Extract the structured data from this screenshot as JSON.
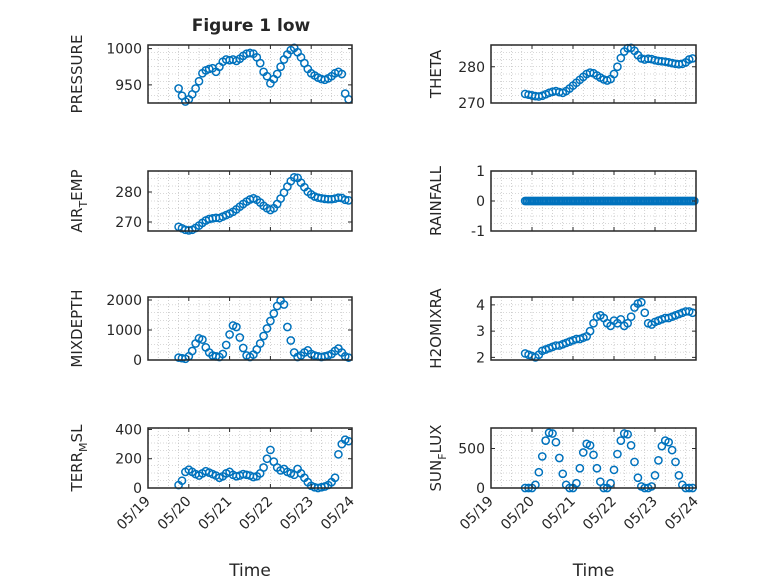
{
  "title": "Figure 1 low",
  "colors": {
    "marker": "#0072bd",
    "axis": "#262626",
    "grid": "#b0b0b0",
    "background": "#ffffff"
  },
  "chart_data": [
    {
      "id": "pressure",
      "type": "scatter",
      "marker": "circle",
      "title": "Figure 1 low",
      "ylabel": "PRESSURE",
      "xlabel": "",
      "xlim": [
        "05/19",
        "05/24"
      ],
      "ylim": [
        925,
        1005
      ],
      "yticks": [
        950,
        1000
      ],
      "yticklabels": [
        "950",
        "1000"
      ],
      "xticks": [
        "05/19",
        "05/20",
        "05/21",
        "05/22",
        "05/23",
        "05/24"
      ],
      "xticklabels": [],
      "grid": "minor-dotted",
      "x": [
        "05/19 18:00",
        "05/19 20:00",
        "05/19 22:00",
        "05/20 00:00",
        "05/20 02:00",
        "05/20 04:00",
        "05/20 06:00",
        "05/20 08:00",
        "05/20 10:00",
        "05/20 12:00",
        "05/20 14:00",
        "05/20 16:00",
        "05/20 18:00",
        "05/20 20:00",
        "05/20 22:00",
        "05/21 00:00",
        "05/21 02:00",
        "05/21 04:00",
        "05/21 06:00",
        "05/21 08:00",
        "05/21 10:00",
        "05/21 12:00",
        "05/21 14:00",
        "05/21 16:00",
        "05/21 18:00",
        "05/21 20:00",
        "05/21 22:00",
        "05/22 00:00",
        "05/22 02:00",
        "05/22 04:00",
        "05/22 06:00",
        "05/22 08:00",
        "05/22 10:00",
        "05/22 12:00",
        "05/22 14:00",
        "05/22 16:00",
        "05/22 18:00",
        "05/22 20:00",
        "05/22 22:00",
        "05/23 00:00",
        "05/23 02:00",
        "05/23 04:00",
        "05/23 06:00",
        "05/23 08:00",
        "05/23 10:00",
        "05/23 12:00",
        "05/23 14:00",
        "05/23 16:00",
        "05/23 18:00",
        "05/23 20:00",
        "05/23 22:00"
      ],
      "y": [
        945,
        935,
        927,
        930,
        937,
        945,
        955,
        966,
        970,
        972,
        973,
        968,
        975,
        982,
        985,
        984,
        985,
        983,
        986,
        990,
        993,
        994,
        993,
        988,
        980,
        968,
        962,
        952,
        958,
        965,
        975,
        985,
        992,
        998,
        1001,
        995,
        988,
        980,
        972,
        966,
        963,
        960,
        958,
        957,
        959,
        962,
        966,
        968,
        965,
        938,
        930
      ]
    },
    {
      "id": "theta",
      "type": "scatter",
      "marker": "circle",
      "ylabel": "THETA",
      "xlabel": "",
      "xlim": [
        "05/19",
        "05/24"
      ],
      "ylim": [
        270,
        286
      ],
      "yticks": [
        270,
        280
      ],
      "yticklabels": [
        "270",
        "280"
      ],
      "xticks": [
        "05/19",
        "05/20",
        "05/21",
        "05/22",
        "05/23",
        "05/24"
      ],
      "xticklabels": [],
      "grid": "minor-dotted",
      "x": [
        "05/19 20:00",
        "05/19 22:00",
        "05/20 00:00",
        "05/20 02:00",
        "05/20 04:00",
        "05/20 06:00",
        "05/20 08:00",
        "05/20 10:00",
        "05/20 12:00",
        "05/20 14:00",
        "05/20 16:00",
        "05/20 18:00",
        "05/20 20:00",
        "05/20 22:00",
        "05/21 00:00",
        "05/21 02:00",
        "05/21 04:00",
        "05/21 06:00",
        "05/21 08:00",
        "05/21 10:00",
        "05/21 12:00",
        "05/21 14:00",
        "05/21 16:00",
        "05/21 18:00",
        "05/21 20:00",
        "05/21 22:00",
        "05/22 00:00",
        "05/22 02:00",
        "05/22 04:00",
        "05/22 06:00",
        "05/22 08:00",
        "05/22 10:00",
        "05/22 12:00",
        "05/22 14:00",
        "05/22 16:00",
        "05/22 18:00",
        "05/22 20:00",
        "05/22 22:00",
        "05/23 00:00",
        "05/23 02:00",
        "05/23 04:00",
        "05/23 06:00",
        "05/23 08:00",
        "05/23 10:00",
        "05/23 12:00",
        "05/23 14:00",
        "05/23 16:00",
        "05/23 18:00",
        "05/23 20:00",
        "05/23 22:00"
      ],
      "y": [
        272.5,
        272.3,
        272.1,
        271.9,
        271.8,
        272.0,
        272.4,
        272.8,
        273.1,
        273.3,
        273.0,
        272.8,
        273.3,
        274.0,
        274.8,
        275.6,
        276.4,
        277.2,
        278.0,
        278.4,
        278.2,
        277.6,
        277.0,
        276.5,
        276.2,
        276.6,
        278.0,
        280.0,
        282.4,
        284.2,
        285.1,
        285.2,
        284.4,
        283.2,
        282.3,
        282.0,
        282.2,
        282.1,
        281.8,
        281.6,
        281.5,
        281.4,
        281.2,
        281.0,
        280.8,
        280.7,
        280.8,
        281.2,
        282.0,
        282.3
      ]
    },
    {
      "id": "air_temp",
      "type": "scatter",
      "marker": "circle",
      "ylabel": "AIR_TEMP",
      "ylabel_main": "AIR",
      "ylabel_sub": "T",
      "ylabel_rest": "EMP",
      "xlabel": "",
      "xlim": [
        "05/19",
        "05/24"
      ],
      "ylim": [
        267,
        287
      ],
      "yticks": [
        270,
        280
      ],
      "yticklabels": [
        "270",
        "280"
      ],
      "xticks": [
        "05/19",
        "05/20",
        "05/21",
        "05/22",
        "05/23",
        "05/24"
      ],
      "xticklabels": [],
      "grid": "minor-dotted",
      "x": [
        "05/19 18:00",
        "05/19 20:00",
        "05/19 22:00",
        "05/20 00:00",
        "05/20 02:00",
        "05/20 04:00",
        "05/20 06:00",
        "05/20 08:00",
        "05/20 10:00",
        "05/20 12:00",
        "05/20 14:00",
        "05/20 16:00",
        "05/20 18:00",
        "05/20 20:00",
        "05/20 22:00",
        "05/21 00:00",
        "05/21 02:00",
        "05/21 04:00",
        "05/21 06:00",
        "05/21 08:00",
        "05/21 10:00",
        "05/21 12:00",
        "05/21 14:00",
        "05/21 16:00",
        "05/21 18:00",
        "05/21 20:00",
        "05/21 22:00",
        "05/22 00:00",
        "05/22 02:00",
        "05/22 04:00",
        "05/22 06:00",
        "05/22 08:00",
        "05/22 10:00",
        "05/22 12:00",
        "05/22 14:00",
        "05/22 16:00",
        "05/22 18:00",
        "05/22 20:00",
        "05/22 22:00",
        "05/23 00:00",
        "05/23 02:00",
        "05/23 04:00",
        "05/23 06:00",
        "05/23 08:00",
        "05/23 10:00",
        "05/23 12:00",
        "05/23 14:00",
        "05/23 16:00",
        "05/23 18:00",
        "05/23 20:00",
        "05/23 22:00"
      ],
      "y": [
        268.4,
        267.9,
        267.4,
        267.2,
        267.4,
        268.0,
        268.8,
        269.7,
        270.5,
        271.0,
        271.2,
        271.4,
        271.3,
        271.8,
        272.3,
        272.8,
        273.4,
        274.2,
        275.1,
        276.0,
        276.8,
        277.5,
        277.9,
        277.4,
        276.5,
        275.4,
        274.6,
        274.0,
        274.6,
        276.0,
        277.8,
        279.8,
        281.8,
        283.6,
        284.9,
        284.7,
        283.1,
        281.6,
        280.1,
        279.2,
        278.5,
        278.1,
        277.9,
        277.7,
        277.6,
        277.6,
        277.8,
        278.1,
        278.0,
        277.4,
        277.2
      ]
    },
    {
      "id": "rainfall",
      "type": "scatter",
      "marker": "circle",
      "ylabel": "RAINFALL",
      "xlabel": "",
      "xlim": [
        "05/19",
        "05/24"
      ],
      "ylim": [
        -1,
        1
      ],
      "yticks": [
        -1,
        0,
        1
      ],
      "yticklabels": [
        "-1",
        "0",
        "1"
      ],
      "xticks": [
        "05/19",
        "05/20",
        "05/21",
        "05/22",
        "05/23",
        "05/24"
      ],
      "xticklabels": [],
      "grid": "minor-dotted",
      "x_range": [
        "05/19 20:00",
        "05/23 23:00"
      ],
      "x_step_hours": 1,
      "y_constant": 0
    },
    {
      "id": "mixdepth",
      "type": "scatter",
      "marker": "circle",
      "ylabel": "MIXDEPTH",
      "xlabel": "",
      "xlim": [
        "05/19",
        "05/24"
      ],
      "ylim": [
        0,
        2100
      ],
      "yticks": [
        0,
        1000,
        2000
      ],
      "yticklabels": [
        "0",
        "1000",
        "2000"
      ],
      "xticks": [
        "05/19",
        "05/20",
        "05/21",
        "05/22",
        "05/23",
        "05/24"
      ],
      "xticklabels": [],
      "grid": "minor-dotted",
      "x": [
        "05/19 18:00",
        "05/19 20:00",
        "05/19 22:00",
        "05/20 00:00",
        "05/20 02:00",
        "05/20 04:00",
        "05/20 06:00",
        "05/20 08:00",
        "05/20 10:00",
        "05/20 12:00",
        "05/20 14:00",
        "05/20 16:00",
        "05/20 18:00",
        "05/20 20:00",
        "05/20 22:00",
        "05/21 00:00",
        "05/21 02:00",
        "05/21 04:00",
        "05/21 06:00",
        "05/21 08:00",
        "05/21 10:00",
        "05/21 12:00",
        "05/21 14:00",
        "05/21 16:00",
        "05/21 18:00",
        "05/21 20:00",
        "05/21 22:00",
        "05/22 00:00",
        "05/22 02:00",
        "05/22 04:00",
        "05/22 06:00",
        "05/22 08:00",
        "05/22 10:00",
        "05/22 12:00",
        "05/22 14:00",
        "05/22 16:00",
        "05/22 18:00",
        "05/22 20:00",
        "05/22 22:00",
        "05/23 00:00",
        "05/23 02:00",
        "05/23 04:00",
        "05/23 06:00",
        "05/23 08:00",
        "05/23 10:00",
        "05/23 12:00",
        "05/23 14:00",
        "05/23 16:00",
        "05/23 18:00",
        "05/23 20:00",
        "05/23 22:00"
      ],
      "y": [
        80,
        60,
        40,
        120,
        300,
        550,
        720,
        680,
        420,
        250,
        150,
        120,
        100,
        200,
        500,
        850,
        1150,
        1100,
        750,
        400,
        150,
        100,
        180,
        350,
        550,
        800,
        1050,
        1300,
        1550,
        1800,
        1980,
        1850,
        1100,
        650,
        250,
        100,
        150,
        250,
        320,
        200,
        150,
        120,
        100,
        120,
        150,
        200,
        300,
        380,
        250,
        120,
        80
      ]
    },
    {
      "id": "h2omixra",
      "type": "scatter",
      "marker": "circle",
      "ylabel": "H2OMIXRA",
      "xlabel": "",
      "xlim": [
        "05/19",
        "05/24"
      ],
      "ylim": [
        1.9,
        4.3
      ],
      "yticks": [
        2,
        3,
        4
      ],
      "yticklabels": [
        "2",
        "3",
        "4"
      ],
      "xticks": [
        "05/19",
        "05/20",
        "05/21",
        "05/22",
        "05/23",
        "05/24"
      ],
      "xticklabels": [],
      "grid": "minor-dotted",
      "x": [
        "05/19 20:00",
        "05/19 22:00",
        "05/20 00:00",
        "05/20 02:00",
        "05/20 04:00",
        "05/20 06:00",
        "05/20 08:00",
        "05/20 10:00",
        "05/20 12:00",
        "05/20 14:00",
        "05/20 16:00",
        "05/20 18:00",
        "05/20 20:00",
        "05/20 22:00",
        "05/21 00:00",
        "05/21 02:00",
        "05/21 04:00",
        "05/21 06:00",
        "05/21 08:00",
        "05/21 10:00",
        "05/21 12:00",
        "05/21 14:00",
        "05/21 16:00",
        "05/21 18:00",
        "05/21 20:00",
        "05/21 22:00",
        "05/22 00:00",
        "05/22 02:00",
        "05/22 04:00",
        "05/22 06:00",
        "05/22 08:00",
        "05/22 10:00",
        "05/22 12:00",
        "05/22 14:00",
        "05/22 16:00",
        "05/22 18:00",
        "05/22 20:00",
        "05/22 22:00",
        "05/23 00:00",
        "05/23 02:00",
        "05/23 04:00",
        "05/23 06:00",
        "05/23 08:00",
        "05/23 10:00",
        "05/23 12:00",
        "05/23 14:00",
        "05/23 16:00",
        "05/23 18:00",
        "05/23 20:00",
        "05/23 22:00"
      ],
      "y": [
        2.15,
        2.1,
        2.05,
        2.0,
        2.1,
        2.25,
        2.3,
        2.35,
        2.4,
        2.45,
        2.45,
        2.5,
        2.55,
        2.6,
        2.65,
        2.7,
        2.7,
        2.75,
        2.8,
        3.0,
        3.3,
        3.55,
        3.6,
        3.5,
        3.3,
        3.2,
        3.4,
        3.3,
        3.45,
        3.2,
        3.3,
        3.55,
        3.9,
        4.05,
        4.1,
        3.7,
        3.3,
        3.25,
        3.35,
        3.4,
        3.45,
        3.5,
        3.5,
        3.55,
        3.6,
        3.65,
        3.7,
        3.75,
        3.75,
        3.7
      ]
    },
    {
      "id": "terr_msl",
      "type": "scatter",
      "marker": "circle",
      "ylabel": "TERR_MSL",
      "ylabel_main": "TERR",
      "ylabel_sub": "M",
      "ylabel_rest": "SL",
      "xlabel": "Time",
      "xlim": [
        "05/19",
        "05/24"
      ],
      "ylim": [
        0,
        410
      ],
      "yticks": [
        0,
        200,
        400
      ],
      "yticklabels": [
        "0",
        "200",
        "400"
      ],
      "xticks": [
        "05/19",
        "05/20",
        "05/21",
        "05/22",
        "05/23",
        "05/24"
      ],
      "xticklabels": [
        "05/19",
        "05/20",
        "05/21",
        "05/22",
        "05/23",
        "05/24"
      ],
      "grid": "minor-dotted",
      "x": [
        "05/19 18:00",
        "05/19 20:00",
        "05/19 22:00",
        "05/20 00:00",
        "05/20 02:00",
        "05/20 04:00",
        "05/20 06:00",
        "05/20 08:00",
        "05/20 10:00",
        "05/20 12:00",
        "05/20 14:00",
        "05/20 16:00",
        "05/20 18:00",
        "05/20 20:00",
        "05/20 22:00",
        "05/21 00:00",
        "05/21 02:00",
        "05/21 04:00",
        "05/21 06:00",
        "05/21 08:00",
        "05/21 10:00",
        "05/21 12:00",
        "05/21 14:00",
        "05/21 16:00",
        "05/21 18:00",
        "05/21 20:00",
        "05/21 22:00",
        "05/22 00:00",
        "05/22 02:00",
        "05/22 04:00",
        "05/22 06:00",
        "05/22 08:00",
        "05/22 10:00",
        "05/22 12:00",
        "05/22 14:00",
        "05/22 16:00",
        "05/22 18:00",
        "05/22 20:00",
        "05/22 22:00",
        "05/23 00:00",
        "05/23 02:00",
        "05/23 04:00",
        "05/23 06:00",
        "05/23 08:00",
        "05/23 10:00",
        "05/23 12:00",
        "05/23 14:00",
        "05/23 16:00",
        "05/23 18:00",
        "05/23 20:00",
        "05/23 22:00"
      ],
      "y": [
        20,
        50,
        110,
        125,
        110,
        95,
        85,
        100,
        115,
        105,
        95,
        85,
        70,
        80,
        100,
        110,
        90,
        80,
        85,
        95,
        90,
        85,
        75,
        80,
        100,
        140,
        200,
        260,
        180,
        140,
        120,
        130,
        110,
        100,
        90,
        130,
        100,
        70,
        40,
        15,
        5,
        0,
        5,
        10,
        20,
        40,
        70,
        230,
        300,
        330,
        320
      ]
    },
    {
      "id": "sun_flux",
      "type": "scatter",
      "marker": "circle",
      "ylabel": "SUN_FLUX",
      "ylabel_main": "SUN",
      "ylabel_sub": "F",
      "ylabel_rest": "LUX",
      "xlabel": "Time",
      "xlim": [
        "05/19",
        "05/24"
      ],
      "ylim": [
        0,
        760
      ],
      "yticks": [
        0,
        500
      ],
      "yticklabels": [
        "0",
        "500"
      ],
      "xticks": [
        "05/19",
        "05/20",
        "05/21",
        "05/22",
        "05/23",
        "05/24"
      ],
      "xticklabels": [
        "05/19",
        "05/20",
        "05/21",
        "05/22",
        "05/23",
        "05/24"
      ],
      "grid": "minor-dotted",
      "x": [
        "05/19 20:00",
        "05/19 22:00",
        "05/20 00:00",
        "05/20 02:00",
        "05/20 04:00",
        "05/20 06:00",
        "05/20 08:00",
        "05/20 10:00",
        "05/20 12:00",
        "05/20 14:00",
        "05/20 16:00",
        "05/20 18:00",
        "05/20 20:00",
        "05/20 22:00",
        "05/21 00:00",
        "05/21 02:00",
        "05/21 04:00",
        "05/21 06:00",
        "05/21 08:00",
        "05/21 10:00",
        "05/21 12:00",
        "05/21 14:00",
        "05/21 16:00",
        "05/21 18:00",
        "05/21 20:00",
        "05/21 22:00",
        "05/22 00:00",
        "05/22 02:00",
        "05/22 04:00",
        "05/22 06:00",
        "05/22 08:00",
        "05/22 10:00",
        "05/22 12:00",
        "05/22 14:00",
        "05/22 16:00",
        "05/22 18:00",
        "05/22 20:00",
        "05/22 22:00",
        "05/23 00:00",
        "05/23 02:00",
        "05/23 04:00",
        "05/23 06:00",
        "05/23 08:00",
        "05/23 10:00",
        "05/23 12:00",
        "05/23 14:00",
        "05/23 16:00",
        "05/23 18:00",
        "05/23 20:00",
        "05/23 22:00"
      ],
      "y": [
        0,
        0,
        0,
        40,
        200,
        400,
        600,
        700,
        690,
        580,
        380,
        180,
        40,
        0,
        0,
        60,
        250,
        450,
        560,
        540,
        420,
        250,
        80,
        0,
        0,
        60,
        230,
        430,
        600,
        690,
        680,
        540,
        330,
        130,
        20,
        0,
        0,
        20,
        160,
        350,
        530,
        600,
        580,
        480,
        330,
        160,
        40,
        0,
        0,
        0
      ]
    }
  ]
}
